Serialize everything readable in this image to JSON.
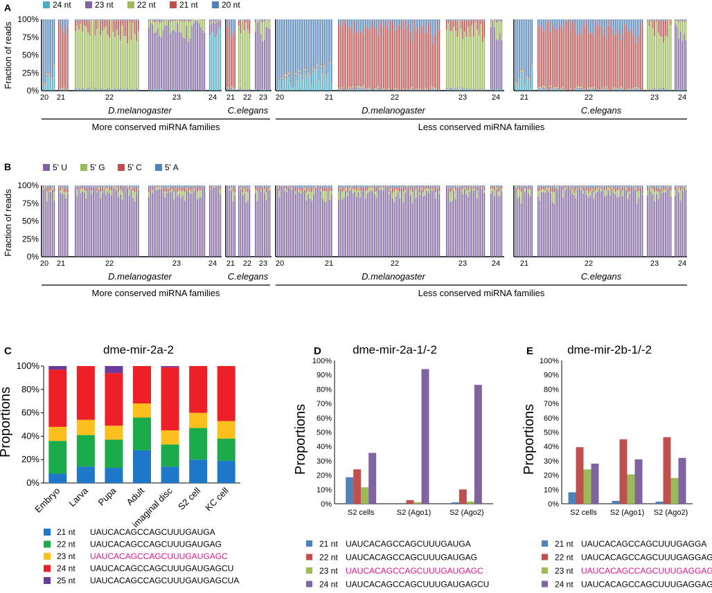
{
  "panelA": {
    "letter": "A",
    "ylabel": "Fraction of reads",
    "yticks": [
      "100%",
      "75%",
      "50%",
      "25%",
      "0%"
    ],
    "legend": [
      {
        "label": "24 nt",
        "color": "#4bacc6"
      },
      {
        "label": "23 nt",
        "color": "#8064a2"
      },
      {
        "label": "22 nt",
        "color": "#9bbb59"
      },
      {
        "label": "21 nt",
        "color": "#c0504d"
      },
      {
        "label": "20 nt",
        "color": "#4f81bd"
      }
    ],
    "ticks_g1": [
      "20",
      "21",
      "22",
      "23",
      "24"
    ],
    "ticks_g2": [
      "21",
      "22",
      "23"
    ],
    "ticks_g3": [
      "20",
      "21",
      "22",
      "23",
      "24"
    ],
    "ticks_g4": [
      "21",
      "22",
      "23",
      "24"
    ],
    "species": [
      "D.melanogaster",
      "C.elegans",
      "D.melanogaster",
      "C.elegans"
    ],
    "groups": [
      "More conserved miRNA families",
      "Less conserved miRNA families"
    ]
  },
  "panelB": {
    "letter": "B",
    "ylabel": "Fraction of reads",
    "yticks": [
      "100%",
      "75%",
      "50%",
      "25%",
      "0%"
    ],
    "legend": [
      {
        "label": "5' U",
        "color": "#8064a2"
      },
      {
        "label": "5' G",
        "color": "#9bbb59"
      },
      {
        "label": "5' C",
        "color": "#c0504d"
      },
      {
        "label": "5' A",
        "color": "#4f81bd"
      }
    ],
    "ticks_g1": [
      "20",
      "21",
      "22",
      "23",
      "24"
    ],
    "ticks_g2": [
      "21",
      "22",
      "23"
    ],
    "ticks_g3": [
      "20",
      "21",
      "22",
      "23",
      "24"
    ],
    "ticks_g4": [
      "21",
      "22",
      "23",
      "24"
    ],
    "species": [
      "D.melanogaster",
      "C.elegans",
      "D.melanogaster",
      "C.elegans"
    ],
    "groups": [
      "More conserved miRNA families",
      "Less conserved miRNA families"
    ]
  },
  "panelC": {
    "letter": "C"
  },
  "panelD": {
    "letter": "D"
  },
  "panelE": {
    "letter": "E"
  },
  "chart_data": [
    {
      "type": "bar",
      "title": "dme-mir-2a-2",
      "stacked": true,
      "ylabel": "Proportions",
      "ylim": [
        0,
        100
      ],
      "yticks": [
        "0%",
        "20%",
        "40%",
        "60%",
        "80%",
        "100%"
      ],
      "categories": [
        "Embryo",
        "Larva",
        "Pupa",
        "Adult",
        "imaginal disc",
        "S2 cell",
        "KC cell"
      ],
      "series": [
        {
          "name": "21 nt",
          "seq": "UAUCACAGCCAGCUUUGAUGA",
          "color": "#1f77c9",
          "values": [
            8,
            14,
            13,
            28,
            14,
            20,
            19
          ]
        },
        {
          "name": "22 nt",
          "seq": "UAUCACAGCCAGCUUUGAUGAG",
          "color": "#1bab4b",
          "values": [
            28,
            27,
            24,
            28,
            19,
            27,
            19
          ]
        },
        {
          "name": "23 nt",
          "seq": "UAUCACAGCCAGCUUUGAUGAGC",
          "color": "#fcbf1e",
          "seqColor": "#e0168c",
          "values": [
            12,
            13,
            12,
            12,
            12,
            13,
            15
          ]
        },
        {
          "name": "24 nt",
          "seq": "UAUCACAGCCAGCUUUGAUGAGCU",
          "color": "#ee2027",
          "values": [
            49,
            46,
            45,
            32,
            54,
            40,
            47
          ]
        },
        {
          "name": "25 nt",
          "seq": "UAUCACAGCCAGCUUUGAUGAGCUA",
          "color": "#6a3b9a",
          "values": [
            3,
            0,
            6,
            0,
            1,
            0,
            0
          ]
        }
      ]
    },
    {
      "type": "bar",
      "title": "dme-mir-2a-1/-2",
      "ylabel": "Proportions",
      "ylim": [
        0,
        100
      ],
      "yticks": [
        "0%",
        "10%",
        "20%",
        "30%",
        "40%",
        "50%",
        "60%",
        "70%",
        "80%",
        "90%",
        "100%"
      ],
      "categories": [
        "S2 cells",
        "S2 (Ago1)",
        "S2 (Ago2)"
      ],
      "series": [
        {
          "name": "21 nt",
          "seq": "UAUCACAGCCAGCUUUGAUGA",
          "color": "#4f81bd",
          "values": [
            18.5,
            0,
            1
          ]
        },
        {
          "name": "22 nt",
          "seq": "UAUCACAGCCAGCUUUGAUGAG",
          "color": "#c0504d",
          "values": [
            24,
            2.5,
            10
          ]
        },
        {
          "name": "23 nt",
          "seq": "UAUCACAGCCAGCUUUGAUGAGC",
          "color": "#9bbb59",
          "seqColor": "#e0168c",
          "values": [
            11.5,
            1,
            1.5
          ]
        },
        {
          "name": "24 nt",
          "seq": "UAUCACAGCCAGCUUUGAUGAGCU",
          "color": "#8064a2",
          "values": [
            35.5,
            94,
            83
          ]
        }
      ]
    },
    {
      "type": "bar",
      "title": "dme-mir-2b-1/-2",
      "ylabel": "Proportions",
      "ylim": [
        0,
        100
      ],
      "yticks": [
        "0%",
        "10%",
        "20%",
        "30%",
        "40%",
        "50%",
        "60%",
        "70%",
        "80%",
        "90%",
        "100%"
      ],
      "categories": [
        "S2 cells",
        "S2 (Ago1)",
        "S2 (Ago2)"
      ],
      "series": [
        {
          "name": "21 nt",
          "seq": "UAUCACAGCCAGCUUUGAGGA",
          "color": "#4f81bd",
          "values": [
            8,
            2,
            1.5
          ]
        },
        {
          "name": "22 nt",
          "seq": "UAUCACAGCCAGCUUUGAGGAG",
          "color": "#c0504d",
          "values": [
            39.5,
            45,
            46.5
          ]
        },
        {
          "name": "23 nt",
          "seq": "UAUCACAGCCAGCUUUGAGGAGC",
          "color": "#9bbb59",
          "seqColor": "#e0168c",
          "values": [
            24,
            20.5,
            18
          ]
        },
        {
          "name": "24 nt",
          "seq": "UAUCACAGCCAGCUUUGAGGAGCG",
          "color": "#8064a2",
          "values": [
            28,
            31,
            32
          ]
        }
      ]
    }
  ]
}
